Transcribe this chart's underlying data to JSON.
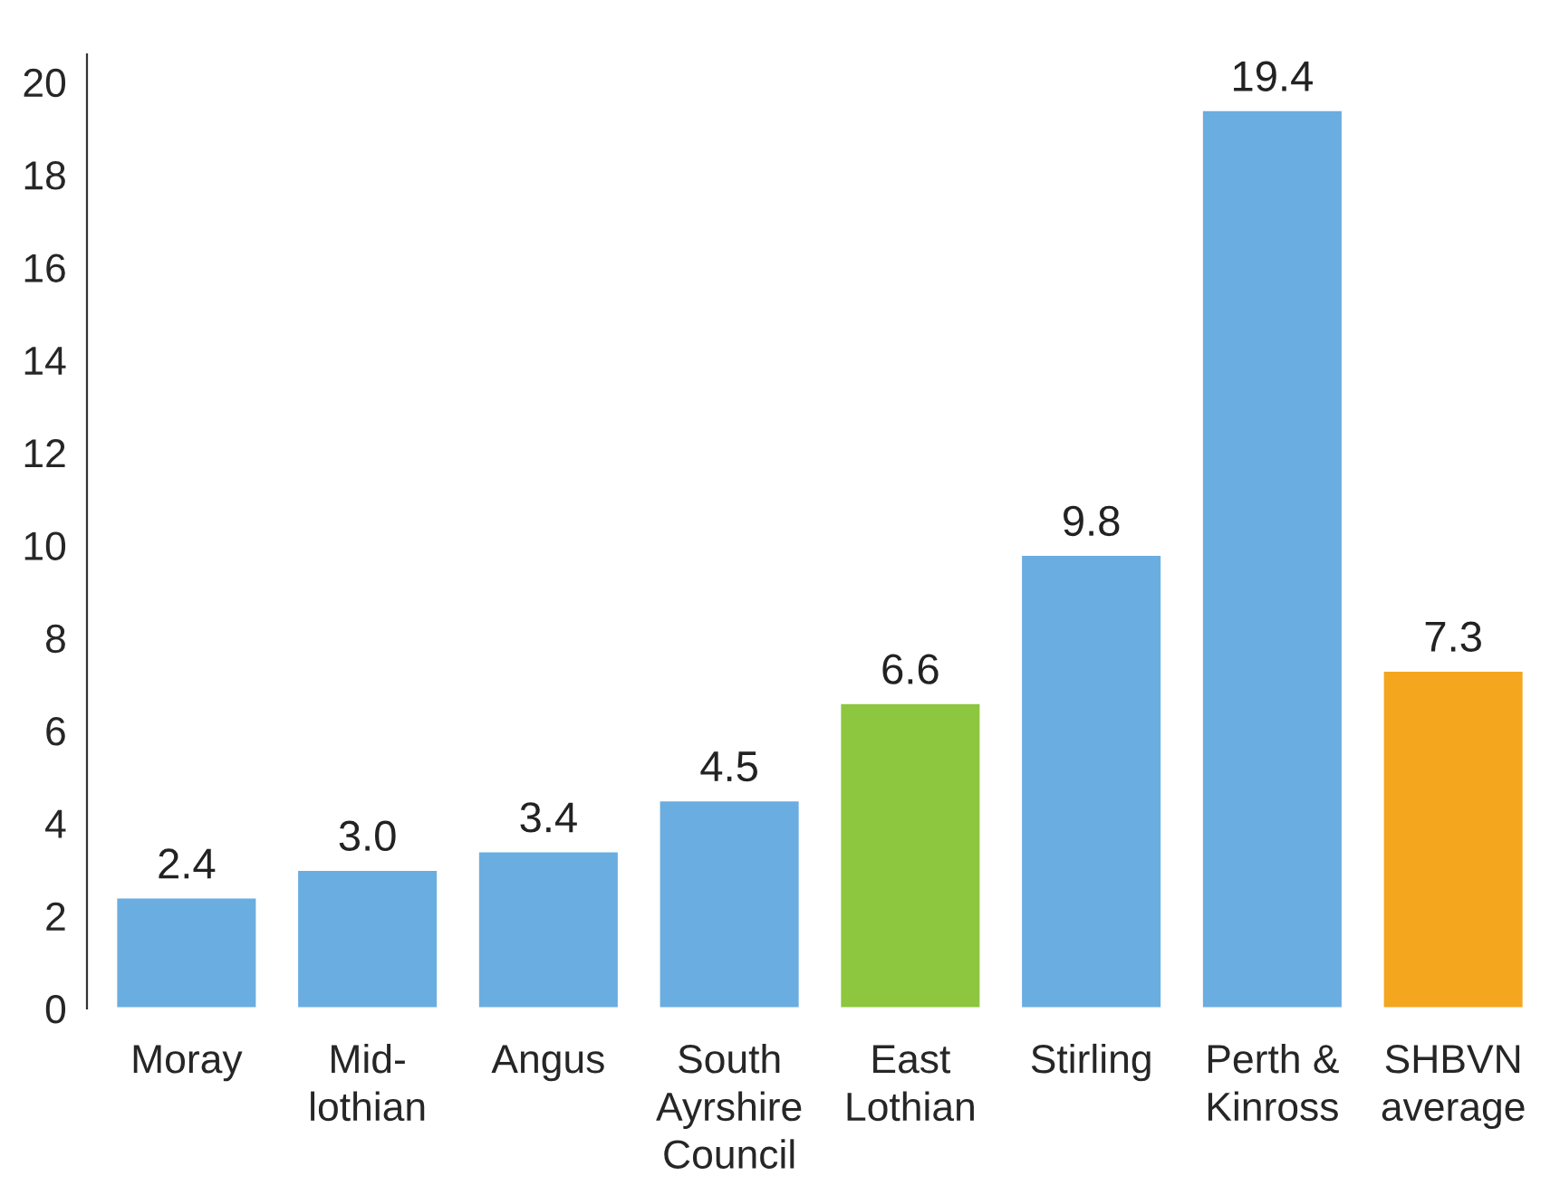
{
  "chart_data": {
    "type": "bar",
    "categories": [
      "Moray",
      "Mid-\nlothian",
      "Angus",
      "South\nAyrshire\nCouncil",
      "East\nLothian",
      "Stirling",
      "Perth &\nKinross",
      "SHBVN\naverage"
    ],
    "values": [
      2.4,
      3.0,
      3.4,
      4.5,
      6.6,
      9.8,
      19.4,
      7.3
    ],
    "colors": [
      "#6aade0",
      "#6aade0",
      "#6aade0",
      "#6aade0",
      "#8dc63f",
      "#6aade0",
      "#6aade0",
      "#f4a61f"
    ],
    "value_labels": [
      "2.4",
      "3.0",
      "3.4",
      "4.5",
      "6.6",
      "9.8",
      "19.4",
      "7.3"
    ],
    "ylim": [
      0,
      20.6
    ],
    "yticks": [
      0,
      2,
      4,
      6,
      8,
      10,
      12,
      14,
      16,
      18,
      20
    ],
    "grid": false,
    "legend": false
  }
}
